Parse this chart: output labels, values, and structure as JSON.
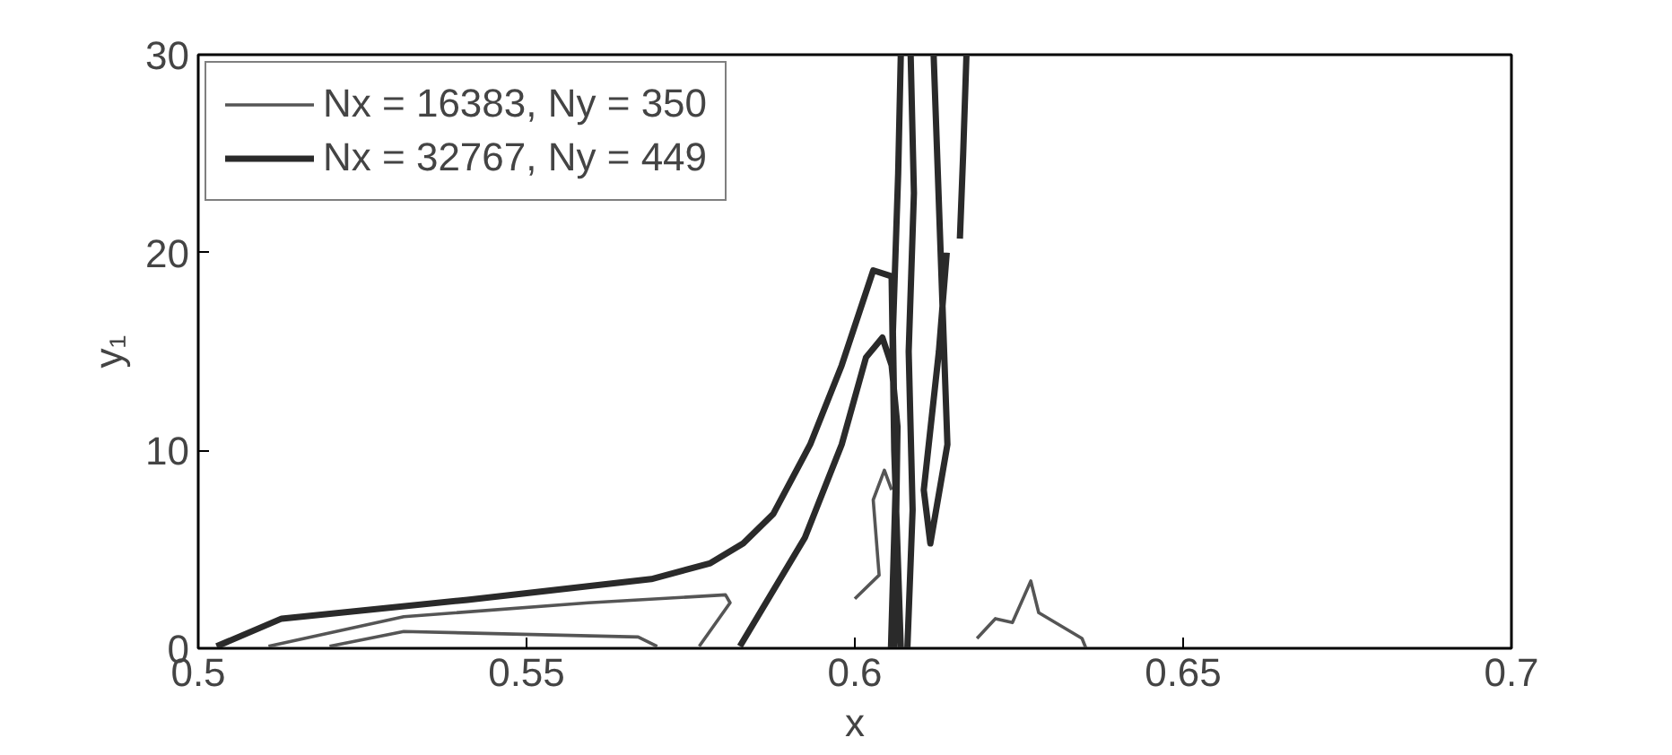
{
  "chart_data": {
    "type": "line",
    "xlabel": "x",
    "ylabel": "y₁",
    "xlim": [
      0.5,
      0.7
    ],
    "ylim": [
      0,
      30
    ],
    "xticks": [
      0.5,
      0.55,
      0.6,
      0.65,
      0.7
    ],
    "yticks": [
      0,
      10,
      20,
      30
    ],
    "legend": "top left",
    "grid": false,
    "marker": "none",
    "line_style": "solid",
    "series": [
      {
        "name": "Nx = 16383, Ny = 350",
        "color": "#555555",
        "x": [
          0.5107,
          0.5313,
          0.5594,
          0.5803,
          0.581,
          0.5763,
          null,
          0.52,
          0.5313,
          0.567,
          0.5699,
          null,
          0.6,
          0.6037,
          0.6028,
          0.6045,
          0.6056,
          null,
          0.6186,
          0.6214,
          0.624,
          0.6268,
          0.628,
          0.6346,
          0.6352
        ],
        "values": [
          0.1,
          1.6,
          2.3,
          2.7,
          2.3,
          0.1,
          null,
          0.1,
          0.85,
          0.57,
          0.1,
          null,
          2.5,
          3.7,
          7.5,
          9,
          8,
          null,
          0.5,
          1.5,
          1.3,
          3.4,
          1.8,
          0.5,
          0
        ]
      },
      {
        "name": "Nx = 32767, Ny = 449",
        "color": "#2a2a2a",
        "x": [
          0.5028,
          0.5127,
          0.541,
          0.569,
          0.578,
          0.583,
          0.5876,
          0.5932,
          0.598,
          0.6028,
          0.6056,
          0.606,
          0.607,
          null,
          0.5825,
          0.5924,
          0.598,
          0.6017,
          0.6042,
          0.6056,
          0.6065,
          0.606,
          null,
          0.6055,
          0.6062,
          0.6058,
          0.6066,
          0.607,
          null,
          0.608,
          0.6088,
          0.6082,
          0.609,
          0.6085,
          null,
          0.612,
          0.6141,
          0.6115,
          0.6105,
          0.6128,
          0.614,
          null,
          0.616,
          0.6165,
          0.617
        ],
        "values": [
          0.1,
          1.5,
          2.45,
          3.5,
          4.3,
          5.3,
          6.8,
          10.3,
          14.3,
          19.1,
          18.8,
          10,
          0,
          null,
          0.1,
          5.6,
          10.3,
          14.7,
          15.7,
          14.3,
          11.2,
          0,
          null,
          0,
          8,
          16,
          24,
          30,
          null,
          0,
          7,
          15,
          23,
          30,
          null,
          30,
          10.3,
          5.3,
          8,
          15,
          20,
          null,
          20.7,
          25,
          30
        ]
      }
    ]
  }
}
